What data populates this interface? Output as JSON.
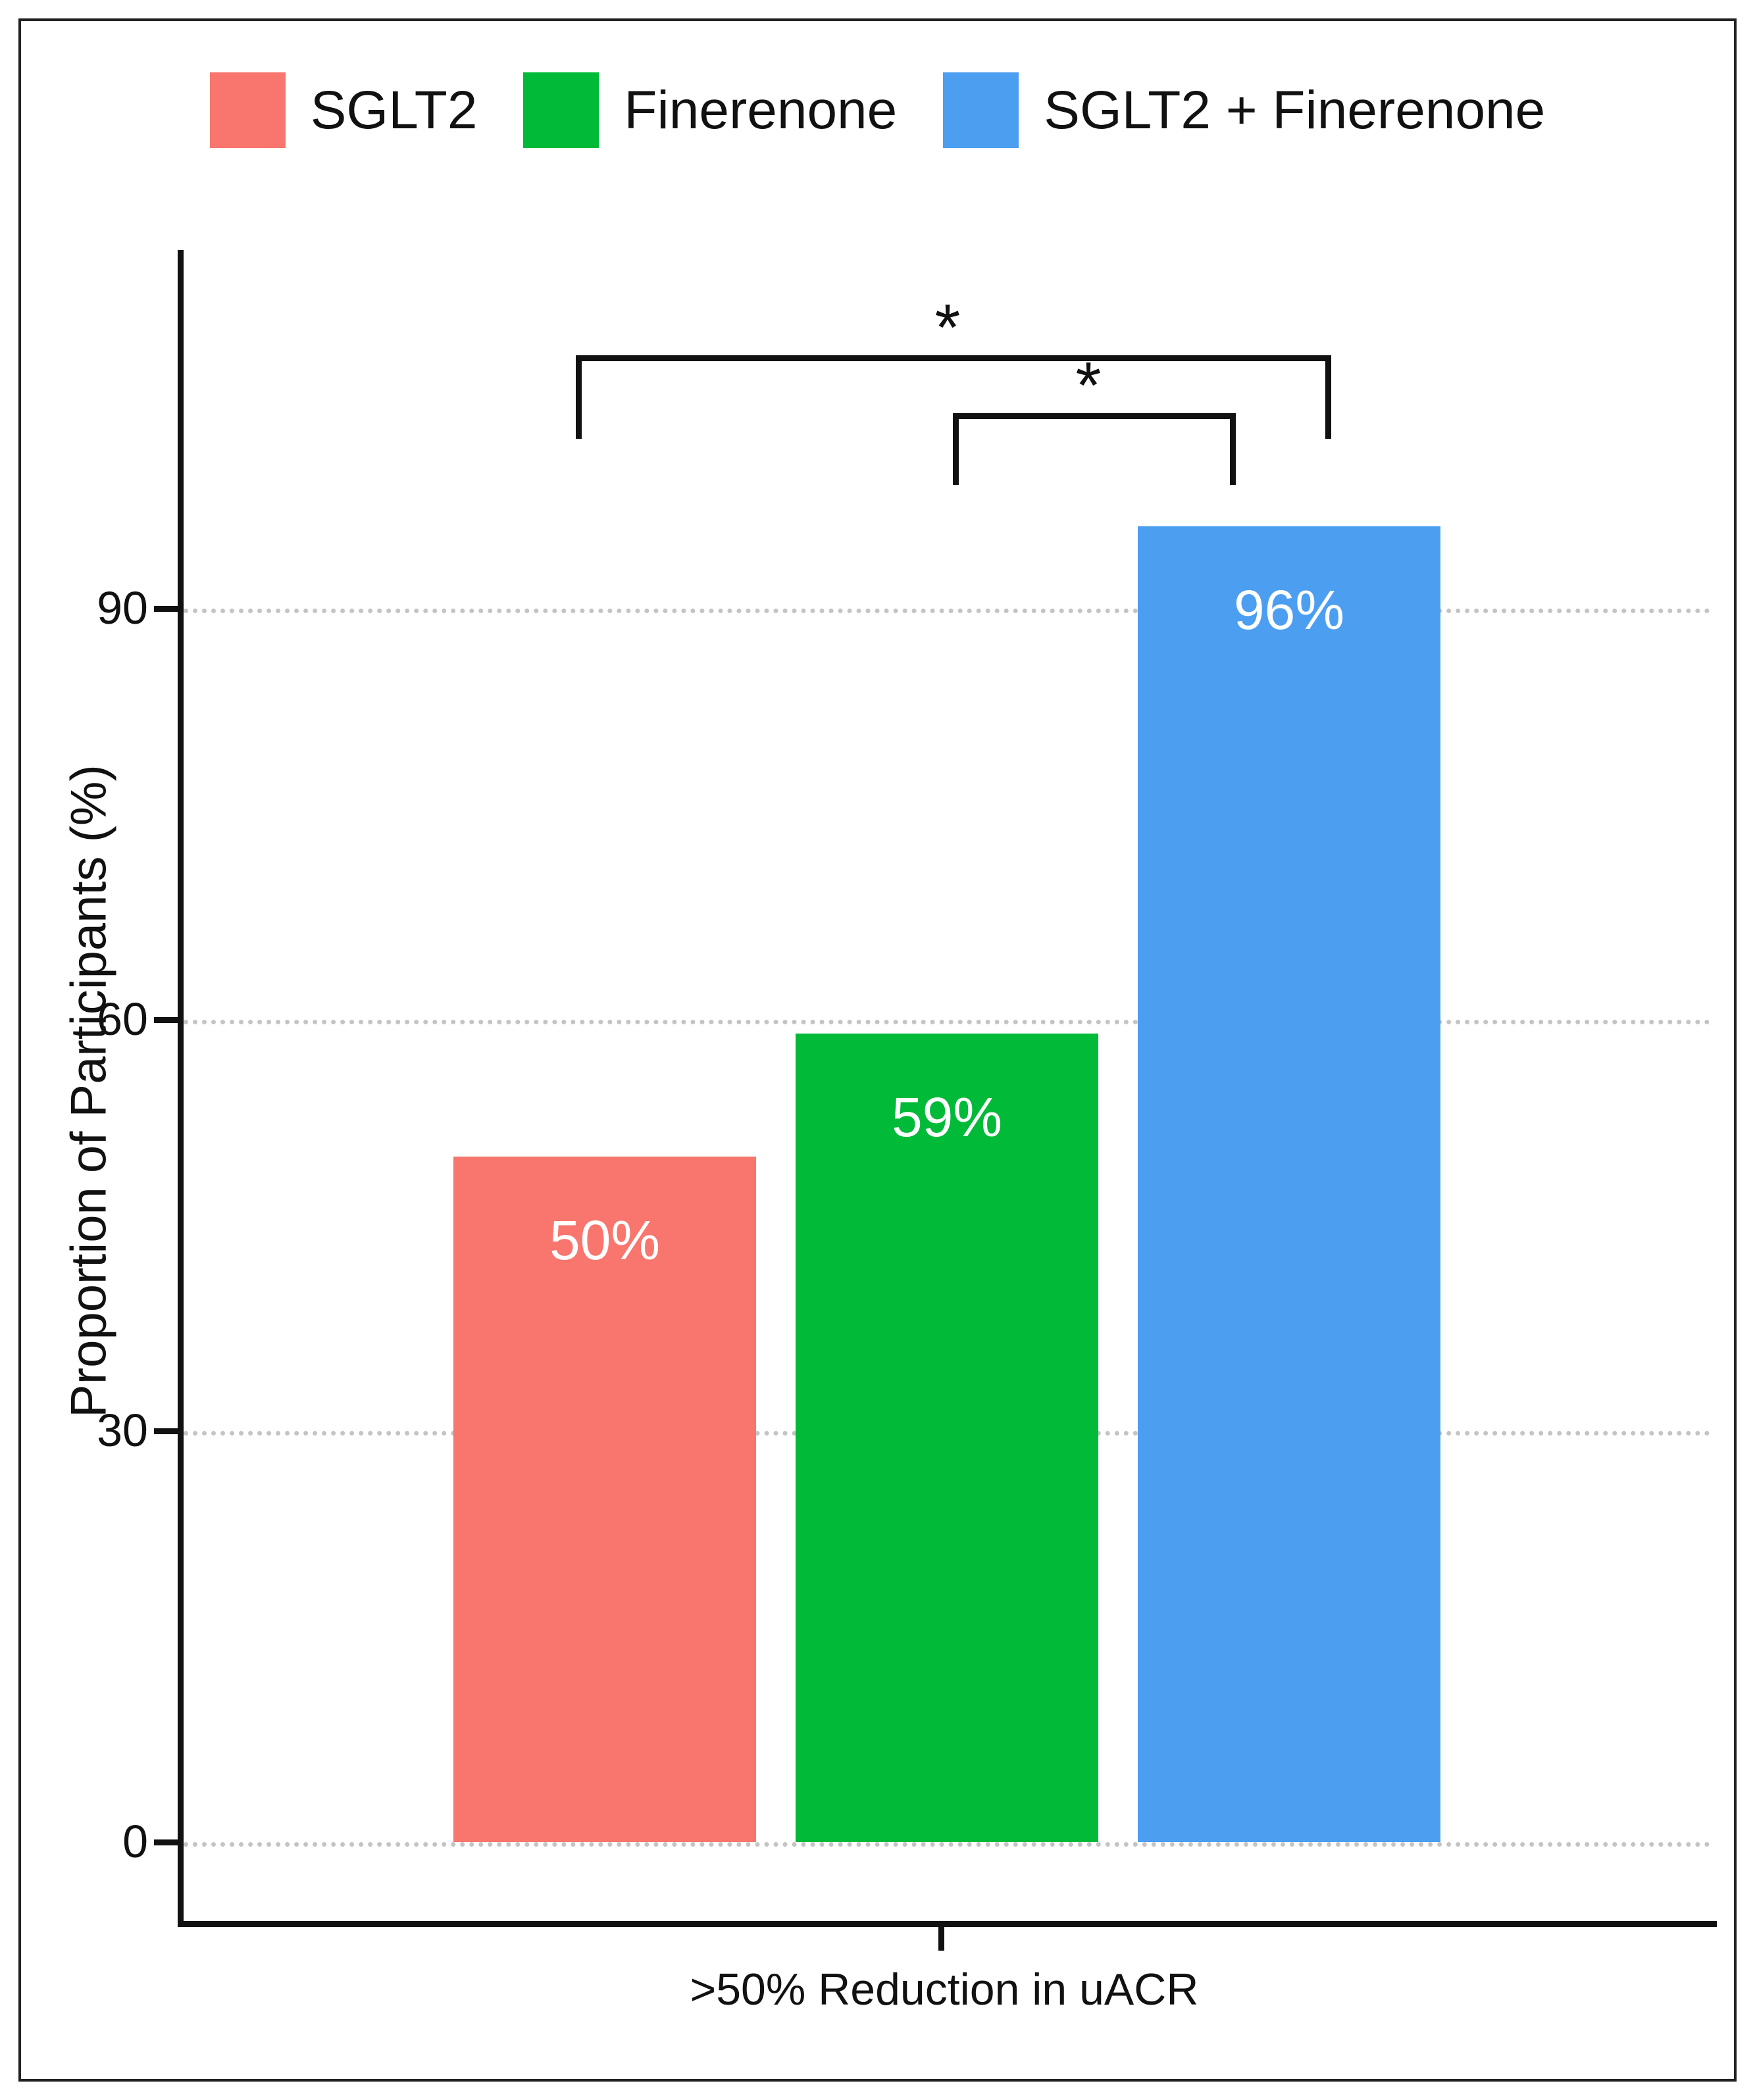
{
  "legend": {
    "items": [
      {
        "label": "SGLT2",
        "color": "#F8766D"
      },
      {
        "label": "Finerenone",
        "color": "#00BA38"
      },
      {
        "label": "SGLT2 + Finerenone",
        "color": "#4C9EF0"
      }
    ]
  },
  "chart_data": {
    "type": "bar",
    "title": "",
    "xlabel": ">50% Reduction in uACR",
    "ylabel": "Proportion of Participants (%)",
    "categories": [
      "SGLT2",
      "Finerenone",
      "SGLT2 + Finerenone"
    ],
    "values": [
      50,
      59,
      96
    ],
    "bar_labels": [
      "50%",
      "59%",
      "96%"
    ],
    "colors": [
      "#F8766D",
      "#00BA38",
      "#4C9EF0"
    ],
    "yticks": [
      0,
      30,
      60,
      90
    ],
    "ylim": [
      0,
      105
    ],
    "grid": "horizontal-dotted",
    "legend_position": "top",
    "annotations": [
      {
        "type": "significance-bracket",
        "from": "SGLT2",
        "to": "SGLT2 + Finerenone",
        "label": "*"
      },
      {
        "type": "significance-bracket",
        "from": "Finerenone",
        "to": "SGLT2 + Finerenone",
        "label": "*"
      }
    ]
  }
}
